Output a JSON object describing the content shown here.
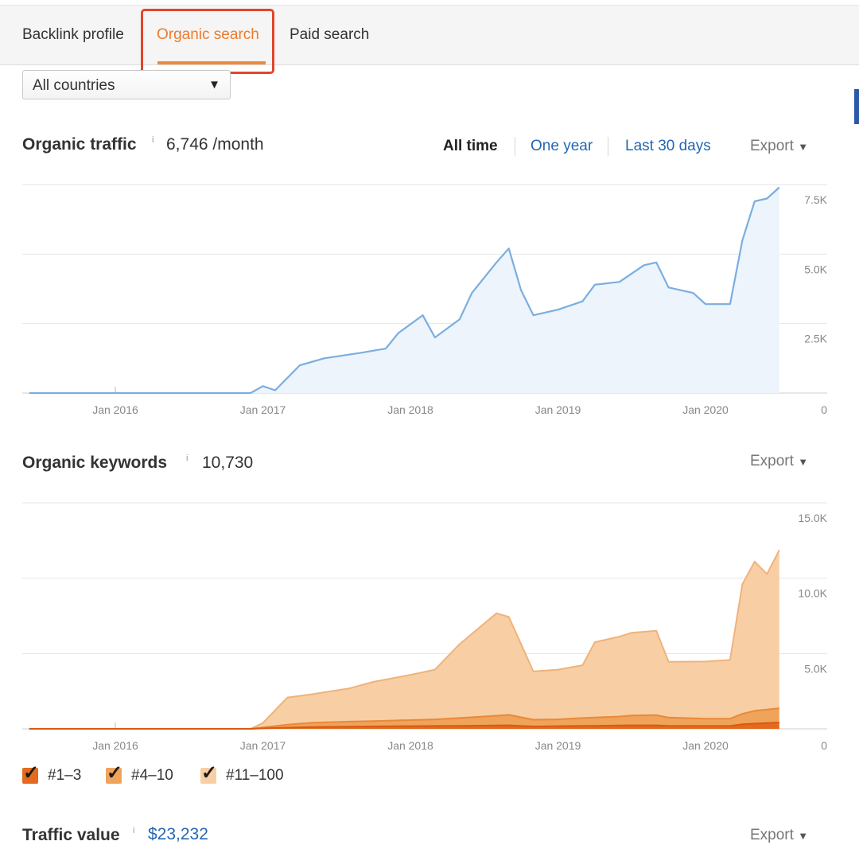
{
  "tabs": [
    {
      "label": "Backlink profile"
    },
    {
      "label": "Organic search"
    },
    {
      "label": "Paid search"
    }
  ],
  "country_select": {
    "value": "All countries"
  },
  "traffic": {
    "title": "Organic traffic",
    "info": "i",
    "value": "6,746 /month",
    "ranges": [
      "All time",
      "One year",
      "Last 30 days"
    ],
    "export": "Export"
  },
  "keywords": {
    "title": "Organic keywords",
    "info": "i",
    "value": "10,730",
    "export": "Export",
    "legend": [
      "#1–3",
      "#4–10",
      "#11–100"
    ]
  },
  "traffic_value": {
    "title": "Traffic value",
    "info": "i",
    "value": "$23,232",
    "export": "Export"
  },
  "colors": {
    "accent": "#ef7a2b",
    "link": "#2467b3",
    "traffic_line": "#7aaee0",
    "kw_top3": "#e36a1f",
    "kw_4_10": "#f0a35a",
    "kw_11_100": "#f8cfa5"
  },
  "icons": [
    "dropdown-caret-icon",
    "export-caret-icon",
    "checkbox-checked-icon"
  ],
  "chart_data": [
    {
      "type": "area",
      "title": "Organic traffic",
      "x_tick_labels": [
        "Jan 2016",
        "Jan 2017",
        "Jan 2018",
        "Jan 2019",
        "Jan 2020"
      ],
      "y_tick_labels": [
        "7.5K",
        "5.0K",
        "2.5K",
        "0"
      ],
      "ylim": [
        0,
        7500
      ],
      "grid": true,
      "series": [
        {
          "values": [
            {
              "x": "2015-06",
              "y": 0
            },
            {
              "x": "2016-06",
              "y": 0
            },
            {
              "x": "2016-12",
              "y": 0
            },
            {
              "x": "2017-01",
              "y": 250
            },
            {
              "x": "2017-02",
              "y": 100
            },
            {
              "x": "2017-04",
              "y": 1000
            },
            {
              "x": "2017-06",
              "y": 1250
            },
            {
              "x": "2017-09",
              "y": 1450
            },
            {
              "x": "2017-11",
              "y": 1600
            },
            {
              "x": "2017-12",
              "y": 2150
            },
            {
              "x": "2018-02",
              "y": 2800
            },
            {
              "x": "2018-03",
              "y": 2000
            },
            {
              "x": "2018-05",
              "y": 2650
            },
            {
              "x": "2018-06",
              "y": 3600
            },
            {
              "x": "2018-08",
              "y": 4700
            },
            {
              "x": "2018-09",
              "y": 5200
            },
            {
              "x": "2018-10",
              "y": 3700
            },
            {
              "x": "2018-11",
              "y": 2800
            },
            {
              "x": "2019-01",
              "y": 3000
            },
            {
              "x": "2019-03",
              "y": 3300
            },
            {
              "x": "2019-04",
              "y": 3900
            },
            {
              "x": "2019-06",
              "y": 4000
            },
            {
              "x": "2019-08",
              "y": 4600
            },
            {
              "x": "2019-09",
              "y": 4700
            },
            {
              "x": "2019-10",
              "y": 3800
            },
            {
              "x": "2019-12",
              "y": 3600
            },
            {
              "x": "2020-01",
              "y": 3200
            },
            {
              "x": "2020-03",
              "y": 3200
            },
            {
              "x": "2020-04",
              "y": 5500
            },
            {
              "x": "2020-05",
              "y": 6900
            },
            {
              "x": "2020-06",
              "y": 7000
            },
            {
              "x": "2020-07",
              "y": 7400
            }
          ]
        }
      ]
    },
    {
      "type": "area",
      "title": "Organic keywords",
      "x_tick_labels": [
        "Jan 2016",
        "Jan 2017",
        "Jan 2018",
        "Jan 2019",
        "Jan 2020"
      ],
      "y_tick_labels": [
        "15.0K",
        "10.0K",
        "5.0K",
        "0"
      ],
      "ylim": [
        0,
        15000
      ],
      "grid": true,
      "stacked": true,
      "categories": [
        "2015-06",
        "2016-12",
        "2017-01",
        "2017-03",
        "2017-05",
        "2017-08",
        "2017-10",
        "2018-01",
        "2018-03",
        "2018-05",
        "2018-08",
        "2018-09",
        "2018-11",
        "2019-01",
        "2019-03",
        "2019-04",
        "2019-06",
        "2019-07",
        "2019-09",
        "2019-10",
        "2020-01",
        "2020-03",
        "2020-04",
        "2020-05",
        "2020-06",
        "2020-07"
      ],
      "series": [
        {
          "name": "#1–3",
          "values": [
            0,
            0,
            30,
            80,
            120,
            150,
            160,
            180,
            190,
            200,
            220,
            230,
            160,
            180,
            200,
            200,
            220,
            230,
            230,
            200,
            190,
            190,
            300,
            350,
            380,
            420
          ]
        },
        {
          "name": "#4–10",
          "values": [
            0,
            0,
            60,
            200,
            280,
            330,
            360,
            400,
            440,
            520,
            650,
            700,
            450,
            450,
            520,
            550,
            600,
            650,
            680,
            550,
            480,
            480,
            700,
            850,
            900,
            950
          ]
        },
        {
          "name": "#11–100",
          "values": [
            0,
            0,
            300,
            1800,
            1900,
            2200,
            2600,
            3000,
            3300,
            4900,
            6800,
            6500,
            3200,
            3300,
            3500,
            5000,
            5300,
            5500,
            5600,
            3700,
            3800,
            3900,
            8600,
            9900,
            9000,
            10500
          ]
        }
      ]
    }
  ]
}
